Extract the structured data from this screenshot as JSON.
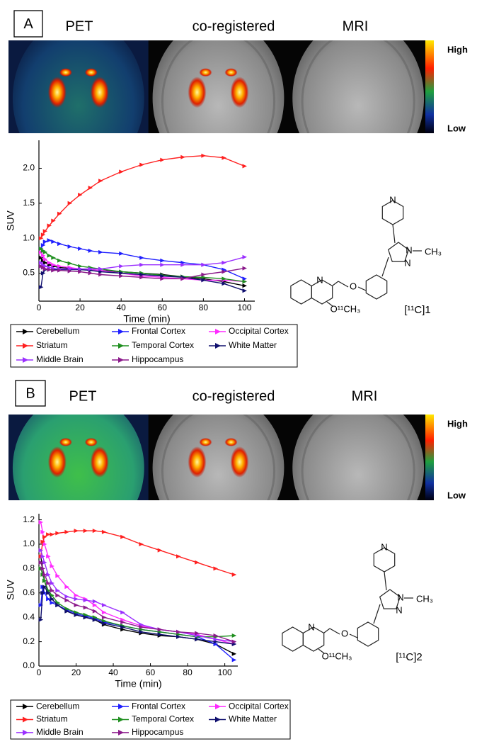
{
  "panels": [
    {
      "label": "A",
      "images": [
        "PET",
        "co-registered",
        "MRI"
      ],
      "colorbar": {
        "high": "High",
        "low": "Low"
      },
      "structure": {
        "atoms": [
          "N",
          "N",
          "N",
          "CH₃",
          "N",
          "O",
          "O¹¹CH₃"
        ],
        "name": "[¹¹C]1"
      }
    },
    {
      "label": "B",
      "images": [
        "PET",
        "co-registered",
        "MRI"
      ],
      "colorbar": {
        "high": "High",
        "low": "Low"
      },
      "structure": {
        "atoms": [
          "N",
          "N",
          "N",
          "CH₃",
          "N",
          "O",
          "O¹¹CH₃"
        ],
        "name": "[¹¹C]2"
      }
    }
  ],
  "chart_data": [
    {
      "type": "line",
      "xlabel": "Time (min)",
      "ylabel": "SUV",
      "legend": "bottom",
      "x": [
        1,
        2,
        3,
        5,
        7,
        10,
        15,
        20,
        25,
        30,
        40,
        50,
        60,
        70,
        80,
        90,
        100
      ],
      "xlim": [
        0,
        105
      ],
      "xticks": [
        0,
        20,
        40,
        60,
        80,
        100
      ],
      "ylim": [
        0.1,
        2.4
      ],
      "yticks": [
        0.5,
        {
          "value": 1,
          "label": "1.0"
        },
        1.5,
        {
          "value": 2,
          "label": "2.0"
        }
      ],
      "series": [
        {
          "name": "Cerebellum",
          "color": "#000000",
          "values": [
            0.72,
            0.68,
            0.65,
            0.62,
            0.6,
            0.58,
            0.57,
            0.56,
            0.55,
            0.54,
            0.52,
            0.5,
            0.48,
            0.45,
            0.42,
            0.38,
            0.32
          ]
        },
        {
          "name": "Frontal Cortex",
          "color": "#1f1fff",
          "values": [
            0.85,
            0.9,
            0.95,
            0.97,
            0.95,
            0.92,
            0.88,
            0.85,
            0.82,
            0.8,
            0.78,
            0.72,
            0.68,
            0.65,
            0.62,
            0.55,
            0.42
          ]
        },
        {
          "name": "Occipital Cortex",
          "color": "#ff2bff",
          "values": [
            0.8,
            0.75,
            0.7,
            0.65,
            0.62,
            0.6,
            0.58,
            0.56,
            0.55,
            0.54,
            0.5,
            0.46,
            0.44,
            0.42,
            0.4,
            0.4,
            0.38
          ]
        },
        {
          "name": "Striatum",
          "color": "#ff2020",
          "values": [
            1.0,
            1.05,
            1.1,
            1.18,
            1.25,
            1.35,
            1.5,
            1.62,
            1.72,
            1.82,
            1.95,
            2.05,
            2.12,
            2.16,
            2.18,
            2.15,
            2.03
          ]
        },
        {
          "name": "Temporal Cortex",
          "color": "#1f8f1f",
          "values": [
            0.85,
            0.82,
            0.8,
            0.75,
            0.72,
            0.68,
            0.64,
            0.6,
            0.58,
            0.56,
            0.52,
            0.5,
            0.47,
            0.45,
            0.44,
            0.42,
            0.38
          ]
        },
        {
          "name": "White Matter",
          "color": "#10106f",
          "values": [
            0.3,
            0.5,
            0.55,
            0.55,
            0.55,
            0.55,
            0.55,
            0.55,
            0.54,
            0.52,
            0.5,
            0.48,
            0.46,
            0.44,
            0.4,
            0.35,
            0.25
          ]
        },
        {
          "name": "Middle Brain",
          "color": "#9b30ff",
          "values": [
            0.65,
            0.62,
            0.6,
            0.58,
            0.57,
            0.56,
            0.56,
            0.56,
            0.56,
            0.56,
            0.6,
            0.62,
            0.62,
            0.62,
            0.62,
            0.65,
            0.73
          ]
        },
        {
          "name": "Hippocampus",
          "color": "#8b1a8b",
          "values": [
            0.6,
            0.58,
            0.56,
            0.55,
            0.54,
            0.54,
            0.53,
            0.52,
            0.5,
            0.48,
            0.46,
            0.44,
            0.42,
            0.42,
            0.48,
            0.52,
            0.57
          ]
        }
      ]
    },
    {
      "type": "line",
      "xlabel": "Time (min)",
      "ylabel": "SUV",
      "legend": "bottom",
      "x": [
        1,
        2,
        3,
        5,
        7,
        10,
        15,
        20,
        25,
        30,
        35,
        45,
        55,
        65,
        75,
        85,
        95,
        105
      ],
      "xlim": [
        0,
        107
      ],
      "xticks": [
        0,
        20,
        40,
        60,
        80,
        100
      ],
      "ylim": [
        0,
        1.25
      ],
      "yticks": [
        {
          "value": 0,
          "label": "0.0"
        },
        0.2,
        0.4,
        0.6,
        0.8,
        {
          "value": 1,
          "label": "1.0"
        },
        1.2
      ],
      "series": [
        {
          "name": "Cerebellum",
          "color": "#000000",
          "values": [
            0.9,
            0.8,
            0.7,
            0.6,
            0.55,
            0.5,
            0.45,
            0.42,
            0.4,
            0.38,
            0.34,
            0.3,
            0.27,
            0.25,
            0.24,
            0.22,
            0.18,
            0.1
          ]
        },
        {
          "name": "Frontal Cortex",
          "color": "#1f1fff",
          "values": [
            0.5,
            0.65,
            0.6,
            0.55,
            0.52,
            0.5,
            0.46,
            0.43,
            0.41,
            0.39,
            0.36,
            0.33,
            0.3,
            0.28,
            0.26,
            0.24,
            0.18,
            0.05
          ]
        },
        {
          "name": "Occipital Cortex",
          "color": "#ff2bff",
          "values": [
            1.18,
            1.1,
            1.0,
            0.9,
            0.82,
            0.74,
            0.65,
            0.58,
            0.55,
            0.5,
            0.44,
            0.38,
            0.33,
            0.3,
            0.28,
            0.26,
            0.22,
            0.18
          ]
        },
        {
          "name": "Striatum",
          "color": "#ff2020",
          "values": [
            0.9,
            1.02,
            1.06,
            1.08,
            1.08,
            1.09,
            1.1,
            1.11,
            1.11,
            1.11,
            1.1,
            1.06,
            1.0,
            0.95,
            0.9,
            0.85,
            0.8,
            0.75
          ]
        },
        {
          "name": "Temporal Cortex",
          "color": "#1f8f1f",
          "values": [
            0.8,
            0.75,
            0.7,
            0.62,
            0.58,
            0.52,
            0.47,
            0.44,
            0.42,
            0.4,
            0.37,
            0.33,
            0.3,
            0.28,
            0.26,
            0.24,
            0.24,
            0.25
          ]
        },
        {
          "name": "White Matter",
          "color": "#10106f",
          "values": [
            0.38,
            0.6,
            0.65,
            0.6,
            0.55,
            0.5,
            0.45,
            0.42,
            0.4,
            0.38,
            0.35,
            0.32,
            0.28,
            0.26,
            0.24,
            0.22,
            0.2,
            0.18
          ]
        },
        {
          "name": "Middle Brain",
          "color": "#9b30ff",
          "values": [
            0.95,
            0.9,
            0.85,
            0.75,
            0.68,
            0.62,
            0.57,
            0.55,
            0.54,
            0.53,
            0.5,
            0.44,
            0.34,
            0.3,
            0.28,
            0.25,
            0.22,
            0.2
          ]
        },
        {
          "name": "Hippocampus",
          "color": "#8b1a8b",
          "values": [
            0.85,
            0.8,
            0.75,
            0.68,
            0.62,
            0.58,
            0.54,
            0.5,
            0.48,
            0.45,
            0.4,
            0.36,
            0.32,
            0.3,
            0.28,
            0.27,
            0.25,
            0.2
          ]
        }
      ]
    }
  ]
}
